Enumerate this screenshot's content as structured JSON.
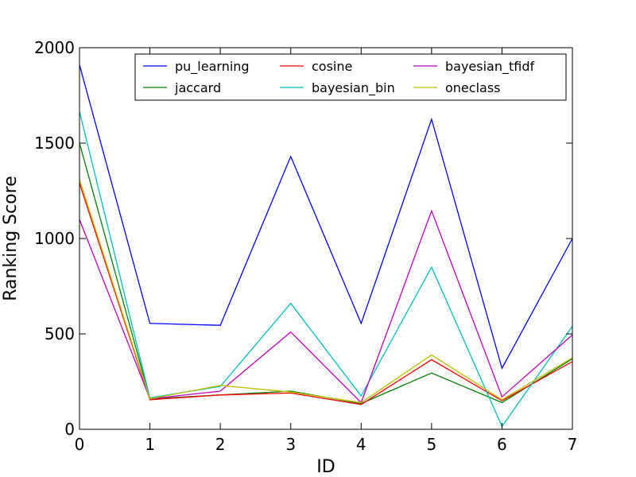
{
  "chart_data": {
    "type": "line",
    "xlabel": "ID",
    "ylabel": "Ranking Score",
    "xlim": [
      0,
      7
    ],
    "ylim": [
      0,
      2000
    ],
    "xticks": [
      0,
      1,
      2,
      3,
      4,
      5,
      6,
      7
    ],
    "yticks": [
      0,
      500,
      1000,
      1500,
      2000
    ],
    "x": [
      0,
      1,
      2,
      3,
      4,
      5,
      6,
      7
    ],
    "grid": false,
    "legend_position": "top-right",
    "series": [
      {
        "name": "pu_learning",
        "color": "#0000ff",
        "values": [
          1910,
          555,
          545,
          1430,
          555,
          1625,
          320,
          1000
        ]
      },
      {
        "name": "jaccard",
        "color": "#008000",
        "values": [
          1500,
          160,
          180,
          200,
          135,
          295,
          140,
          370
        ]
      },
      {
        "name": "cosine",
        "color": "#ff0000",
        "values": [
          1290,
          155,
          180,
          190,
          130,
          365,
          150,
          355
        ]
      },
      {
        "name": "bayesian_bin",
        "color": "#00bfbf",
        "values": [
          1665,
          165,
          225,
          660,
          175,
          850,
          15,
          540
        ]
      },
      {
        "name": "bayesian_tfidf",
        "color": "#bf00bf",
        "values": [
          1100,
          160,
          200,
          510,
          140,
          1145,
          170,
          495
        ]
      },
      {
        "name": "oneclass",
        "color": "#bfbf00",
        "values": [
          1310,
          160,
          230,
          195,
          140,
          390,
          155,
          375
        ]
      }
    ]
  }
}
